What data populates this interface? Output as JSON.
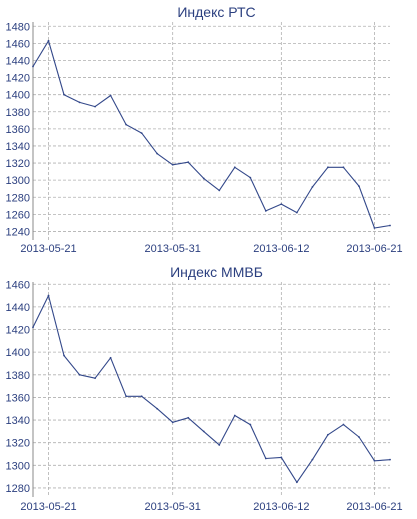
{
  "colors": {
    "line": "#33488a",
    "text": "#2b3f7f",
    "grid": "#b0b0b0"
  },
  "chart_data": [
    {
      "type": "line",
      "title": "Индекс РТС",
      "xlabel": "",
      "ylabel": "",
      "x_tick_labels": [
        "2013-05-21",
        "2013-05-31",
        "2013-06-12",
        "2013-06-21"
      ],
      "x_tick_positions": [
        1,
        9,
        16,
        22
      ],
      "ylim": [
        1230,
        1485
      ],
      "y_ticks": [
        1240,
        1260,
        1280,
        1300,
        1320,
        1340,
        1360,
        1380,
        1400,
        1420,
        1440,
        1460,
        1480
      ],
      "grid": true,
      "series": [
        {
          "x": [
            0,
            1,
            2,
            3,
            4,
            5,
            6,
            7,
            8,
            9,
            10,
            11,
            12,
            13,
            14,
            15,
            16,
            17,
            18,
            19,
            20,
            21,
            22,
            23
          ],
          "values": [
            1433,
            1463,
            1400,
            1391,
            1386,
            1399,
            1365,
            1355,
            1331,
            1318,
            1321,
            1302,
            1288,
            1315,
            1303,
            1264,
            1272,
            1262,
            1292,
            1315,
            1315,
            1293,
            1244,
            1247
          ]
        }
      ]
    },
    {
      "type": "line",
      "title": "Индекс ММВБ",
      "xlabel": "",
      "ylabel": "",
      "x_tick_labels": [
        "2013-05-21",
        "2013-05-31",
        "2013-06-12",
        "2013-06-21"
      ],
      "x_tick_positions": [
        1,
        9,
        16,
        22
      ],
      "ylim": [
        1272,
        1462
      ],
      "y_ticks": [
        1280,
        1300,
        1320,
        1340,
        1360,
        1380,
        1400,
        1420,
        1440,
        1460
      ],
      "grid": true,
      "series": [
        {
          "x": [
            0,
            1,
            2,
            3,
            4,
            5,
            6,
            7,
            8,
            9,
            10,
            11,
            12,
            13,
            14,
            15,
            16,
            17,
            18,
            19,
            20,
            21,
            22,
            23
          ],
          "values": [
            1422,
            1450,
            1397,
            1380,
            1377,
            1395,
            1361,
            1361,
            1350,
            1338,
            1342,
            1330,
            1318,
            1344,
            1336,
            1306,
            1307,
            1285,
            1305,
            1327,
            1336,
            1325,
            1304,
            1305
          ]
        }
      ]
    }
  ]
}
